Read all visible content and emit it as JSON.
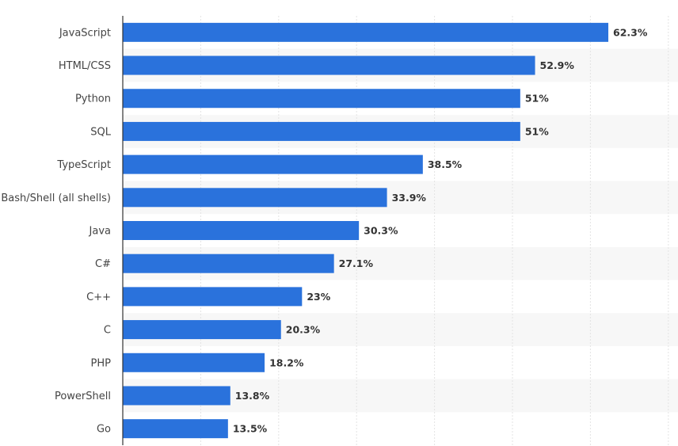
{
  "chart_data": {
    "type": "bar",
    "orientation": "horizontal",
    "categories": [
      "JavaScript",
      "HTML/CSS",
      "Python",
      "SQL",
      "TypeScript",
      "Bash/Shell (all shells)",
      "Java",
      "C#",
      "C++",
      "C",
      "PHP",
      "PowerShell",
      "Go"
    ],
    "values": [
      62.3,
      52.9,
      51,
      51,
      38.5,
      33.9,
      30.3,
      27.1,
      23,
      20.3,
      18.2,
      13.8,
      13.5
    ],
    "value_labels": [
      "62.3%",
      "52.9%",
      "51%",
      "51%",
      "38.5%",
      "33.9%",
      "30.3%",
      "27.1%",
      "23%",
      "20.3%",
      "18.2%",
      "13.8%",
      "13.5%"
    ],
    "xlim": [
      0,
      70
    ],
    "x_grid_step": 10,
    "grid": true,
    "title": "",
    "xlabel": "",
    "ylabel": "",
    "colors": {
      "bar": "#2a72dc",
      "band": "#f7f7f7",
      "grid": "#e3e3e3",
      "axis": "#333333"
    }
  }
}
